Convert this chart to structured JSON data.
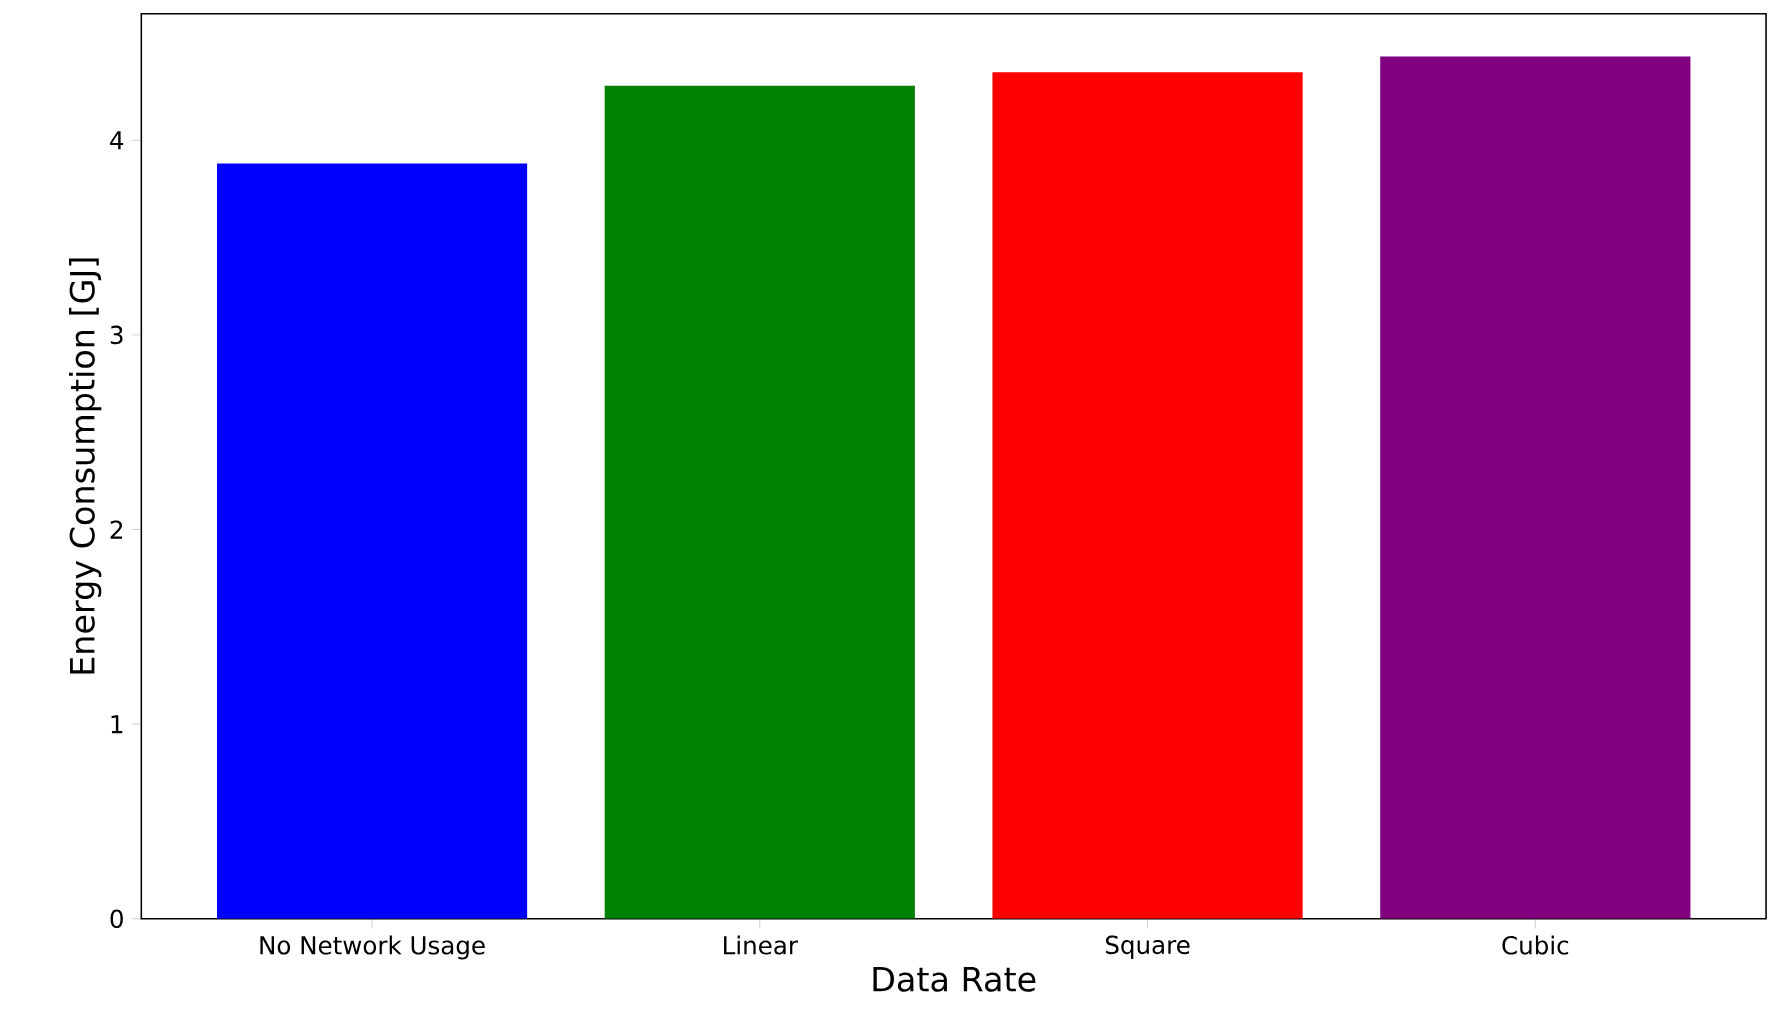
{
  "chart_data": {
    "type": "bar",
    "xlabel": "Data Rate",
    "ylabel": "Energy Consumption [GJ]",
    "categories": [
      "No Network Usage",
      "Linear",
      "Square",
      "Cubic"
    ],
    "values": [
      3.88,
      4.28,
      4.35,
      4.43
    ],
    "colors": [
      "#0000ff",
      "#008000",
      "#ff0000",
      "#800080"
    ],
    "ylim": [
      0,
      4.65
    ],
    "yticks": [
      0,
      1,
      2,
      3,
      4
    ]
  }
}
